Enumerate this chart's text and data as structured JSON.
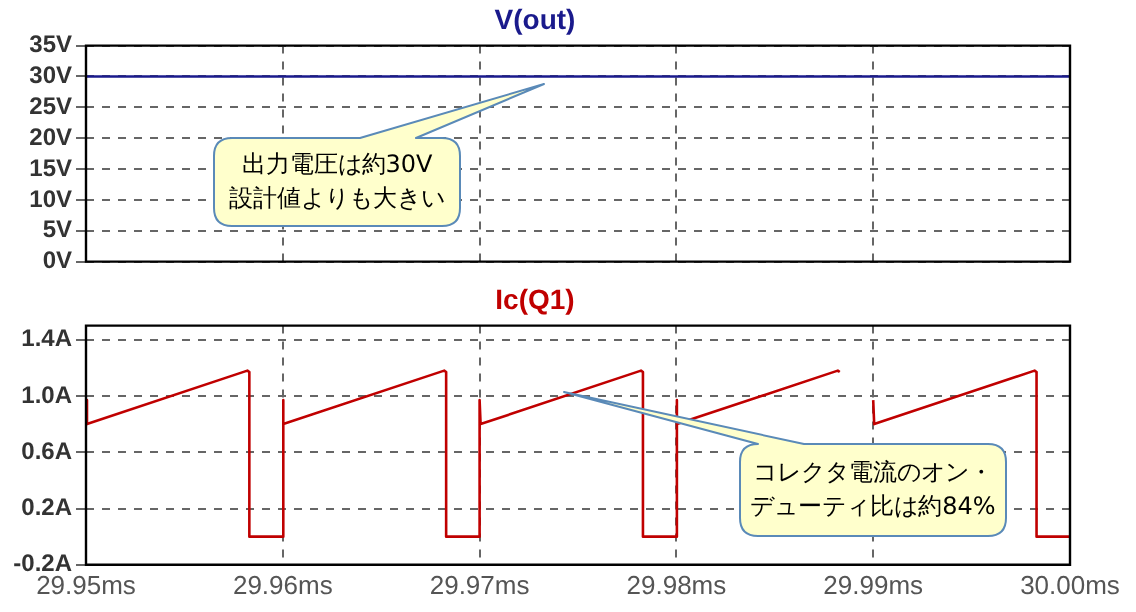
{
  "chart_data": [
    {
      "type": "line",
      "title": "V(out)",
      "series": [
        {
          "color": "#1a1a8c",
          "x": [
            29.95,
            30.0
          ],
          "values": [
            30,
            30
          ]
        }
      ],
      "xlim": [
        29.95,
        30.0
      ],
      "xticks": [
        29.95,
        29.96,
        29.97,
        29.98,
        29.99,
        30.0
      ],
      "ylim": [
        0,
        35
      ],
      "yticks": [
        {
          "value": 0,
          "label": "0V"
        },
        {
          "value": 5,
          "label": "5V"
        },
        {
          "value": 10,
          "label": "10V"
        },
        {
          "value": 15,
          "label": "15V"
        },
        {
          "value": 20,
          "label": "20V"
        },
        {
          "value": 25,
          "label": "25V"
        },
        {
          "value": 30,
          "label": "30V"
        },
        {
          "value": 35,
          "label": "35V"
        }
      ],
      "grid": true,
      "tick_labels": "y",
      "annotations": [
        "出力電圧は約30V",
        "設計値よりも大きい"
      ]
    },
    {
      "type": "line",
      "title": "Ic(Q1)",
      "series": [
        {
          "color": "#c00000",
          "x": [
            29.95,
            29.95005,
            29.9582,
            29.9583,
            29.9583,
            29.96,
            29.96,
            29.96005,
            29.9682,
            29.9683,
            29.9683,
            29.97,
            29.97,
            29.97005,
            29.9782,
            29.9783,
            29.9783,
            29.98,
            29.98,
            29.98005,
            29.9882,
            29.9883
          ],
          "values": [
            0.97,
            0.8,
            1.18,
            1.17,
            0,
            0,
            0.97,
            0.8,
            1.18,
            1.17,
            0,
            0,
            0.97,
            0.8,
            1.18,
            1.17,
            0,
            0,
            0.97,
            0.8,
            1.18,
            1.17
          ]
        },
        {
          "color": "#c00000",
          "x": [
            29.99,
            29.99005,
            29.9982,
            29.9983,
            29.9983,
            30.0
          ],
          "values": [
            0.97,
            0.8,
            1.18,
            1.17,
            0,
            0
          ]
        }
      ],
      "xlim": [
        29.95,
        30.0
      ],
      "xticks": [
        {
          "value": 29.95,
          "label": "29.95ms"
        },
        {
          "value": 29.96,
          "label": "29.96ms"
        },
        {
          "value": 29.97,
          "label": "29.97ms"
        },
        {
          "value": 29.98,
          "label": "29.98ms"
        },
        {
          "value": 29.99,
          "label": "29.99ms"
        },
        {
          "value": 30.0,
          "label": "30.00ms"
        }
      ],
      "ylim": [
        -0.2,
        1.5
      ],
      "yticks": [
        {
          "value": -0.2,
          "label": "-0.2A"
        },
        {
          "value": 0.2,
          "label": "0.2A"
        },
        {
          "value": 0.6,
          "label": "0.6A"
        },
        {
          "value": 1.0,
          "label": "1.0A"
        },
        {
          "value": 1.4,
          "label": "1.4A"
        }
      ],
      "grid": true,
      "annotations": [
        "コレクタ電流のオン・",
        "デューティ比は約84%"
      ]
    }
  ]
}
